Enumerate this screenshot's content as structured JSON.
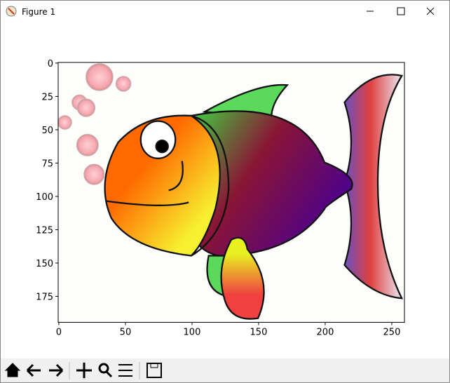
{
  "window": {
    "title": "Figure 1"
  },
  "chart_data": {
    "type": "image",
    "xlim": [
      -0.5,
      259.5
    ],
    "ylim": [
      194.5,
      -0.5
    ],
    "xticks": [
      0,
      50,
      100,
      150,
      200,
      250
    ],
    "yticks": [
      0,
      25,
      50,
      75,
      100,
      125,
      150,
      175
    ]
  }
}
